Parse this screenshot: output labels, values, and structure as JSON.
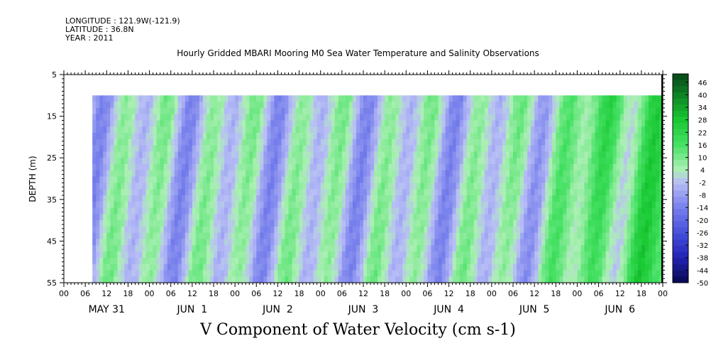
{
  "header": {
    "longitude": "LONGITUDE : 121.9W(-121.9)",
    "latitude": "LATITUDE : 36.8N",
    "year": "YEAR : 2011"
  },
  "chart_data": {
    "type": "heatmap",
    "title": "Hourly Gridded MBARI Mooring M0 Sea Water Temperature and Salinity Observations",
    "xlabel": "V Component of Water Velocity (cm s-1)",
    "ylabel": "DEPTH (m)",
    "y_ticks": [
      5,
      15,
      25,
      35,
      45,
      55
    ],
    "y_range": [
      5,
      55
    ],
    "y_inverted": true,
    "data_depth_range": [
      10,
      55
    ],
    "x_range_hours": [
      0,
      168
    ],
    "x_hour_ticks": [
      "00",
      "06",
      "12",
      "18",
      "00",
      "06",
      "12",
      "18",
      "00",
      "06",
      "12",
      "18",
      "00",
      "06",
      "12",
      "18",
      "00",
      "06",
      "12",
      "18",
      "00",
      "06",
      "12",
      "18",
      "00",
      "06",
      "12",
      "18",
      "00"
    ],
    "x_day_labels": [
      "MAY 31",
      "JUN  1",
      "JUN  2",
      "JUN  3",
      "JUN  4",
      "JUN  5",
      "JUN  6"
    ],
    "data_start_hour": 8,
    "colorbar": {
      "ticks": [
        "46",
        "40",
        "34",
        "28",
        "22",
        "16",
        "10",
        "4",
        "-2",
        "-8",
        "-14",
        "-20",
        "-26",
        "-32",
        "-38",
        "-44",
        "-50"
      ],
      "min": -50,
      "max": 50
    },
    "grid": false,
    "legend": "right colorbar",
    "colors": {
      "strong_positive": "#0a4f18",
      "positive": "#22dd44",
      "weak_positive": "#aef0b4",
      "weak_negative": "#b8bdf6",
      "negative": "#7f86ee",
      "strong_negative": "#0a0a60"
    }
  }
}
